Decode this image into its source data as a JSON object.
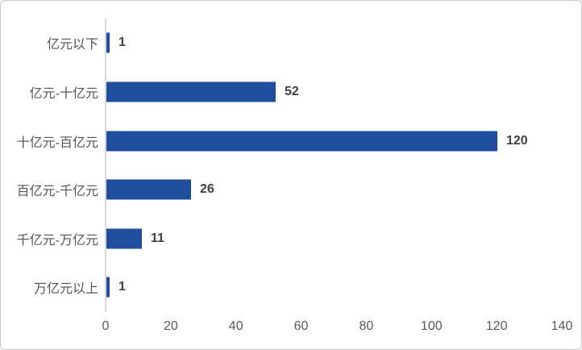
{
  "chart_data": {
    "type": "bar",
    "orientation": "horizontal",
    "title": "",
    "xlabel": "",
    "ylabel": "",
    "categories": [
      "亿元以下",
      "亿元-十亿元",
      "十亿元-百亿元",
      "百亿元-千亿元",
      "千亿元-万亿元",
      "万亿元以上"
    ],
    "values": [
      1,
      52,
      120,
      26,
      11,
      1
    ],
    "data_labels": [
      "1",
      "52",
      "120",
      "26",
      "11",
      "1"
    ],
    "xlim": [
      0,
      140
    ],
    "x_ticks": [
      0,
      20,
      40,
      60,
      80,
      100,
      120,
      140
    ],
    "grid": false,
    "legend": false,
    "bar_color": "#1f4e9e",
    "axis_line_color": "#d9d9d9",
    "category_label_color": "#555555",
    "value_label_color": "#404040",
    "tick_label_color": "#595959",
    "background_color": "#ffffff",
    "border_color": "#c9c9c9"
  }
}
